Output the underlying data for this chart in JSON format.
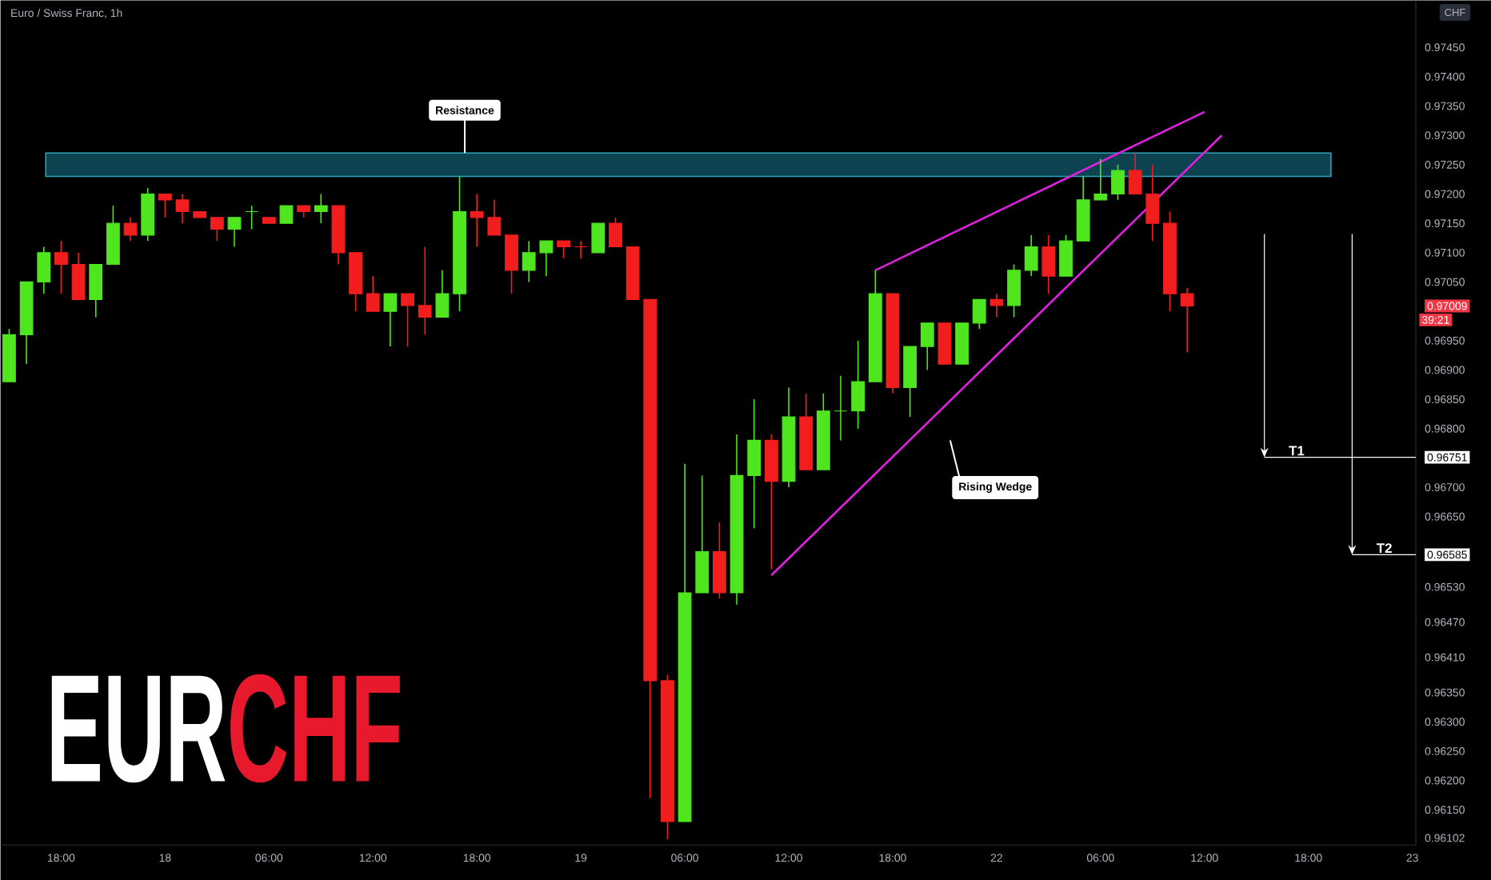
{
  "chart_data": {
    "type": "candlestick",
    "title": "Euro / Swiss Franc, 1h",
    "ylabel": "CHF",
    "categories": [
      null,
      null,
      null,
      "18:00",
      null,
      null,
      null,
      null,
      null,
      "18",
      null,
      null,
      null,
      null,
      null,
      "06:00",
      null,
      null,
      null,
      null,
      null,
      "12:00",
      null,
      null,
      null,
      null,
      null,
      "18:00",
      null,
      null,
      null,
      null,
      null,
      "19",
      null,
      null,
      null,
      null,
      null,
      "06:00",
      null,
      null,
      null,
      null,
      null,
      "12:00",
      null,
      null,
      null,
      null,
      null,
      "18:00",
      null,
      null,
      null,
      null,
      null,
      "22",
      null,
      null,
      null,
      null,
      null,
      "06:00",
      null,
      null,
      null,
      null,
      null,
      "12:00",
      null,
      null,
      null,
      null,
      null,
      "18:00",
      null,
      null,
      null,
      null,
      null,
      "23"
    ],
    "ohlc": [
      [
        0.9688,
        0.9697,
        0.9688,
        0.9696
      ],
      [
        0.9696,
        0.9705,
        0.9691,
        0.9705
      ],
      [
        0.9705,
        0.9711,
        0.9703,
        0.971
      ],
      [
        0.971,
        0.9712,
        0.9703,
        0.9708
      ],
      [
        0.9708,
        0.971,
        0.9702,
        0.9702
      ],
      [
        0.9702,
        0.9708,
        0.9699,
        0.9708
      ],
      [
        0.9708,
        0.9718,
        0.9708,
        0.9715
      ],
      [
        0.9715,
        0.9716,
        0.9712,
        0.9713
      ],
      [
        0.9713,
        0.9721,
        0.9712,
        0.972
      ],
      [
        0.972,
        0.972,
        0.9716,
        0.9719
      ],
      [
        0.9719,
        0.972,
        0.9715,
        0.9717
      ],
      [
        0.9717,
        0.9717,
        0.9716,
        0.9716
      ],
      [
        0.9716,
        0.9716,
        0.9712,
        0.9714
      ],
      [
        0.9714,
        0.9716,
        0.9711,
        0.9716
      ],
      [
        0.9717,
        0.9718,
        0.9714,
        0.9717
      ],
      [
        0.9716,
        0.9716,
        0.9715,
        0.9715
      ],
      [
        0.9715,
        0.9718,
        0.9715,
        0.9718
      ],
      [
        0.9718,
        0.9718,
        0.9716,
        0.9717
      ],
      [
        0.9717,
        0.972,
        0.9715,
        0.9718
      ],
      [
        0.9718,
        0.9718,
        0.9708,
        0.971
      ],
      [
        0.971,
        0.971,
        0.97,
        0.9703
      ],
      [
        0.9703,
        0.9706,
        0.97,
        0.97
      ],
      [
        0.97,
        0.9703,
        0.9694,
        0.9703
      ],
      [
        0.9703,
        0.9703,
        0.9694,
        0.9701
      ],
      [
        0.9701,
        0.9711,
        0.9696,
        0.9699
      ],
      [
        0.9699,
        0.9707,
        0.9699,
        0.9703
      ],
      [
        0.9703,
        0.9723,
        0.97,
        0.9717
      ],
      [
        0.9717,
        0.972,
        0.9711,
        0.9716
      ],
      [
        0.9716,
        0.9719,
        0.9713,
        0.9713
      ],
      [
        0.9713,
        0.9713,
        0.9703,
        0.9707
      ],
      [
        0.9707,
        0.9712,
        0.9705,
        0.971
      ],
      [
        0.971,
        0.9712,
        0.9706,
        0.9712
      ],
      [
        0.9712,
        0.9712,
        0.9709,
        0.9711
      ],
      [
        0.9711,
        0.9712,
        0.9709,
        0.9711
      ],
      [
        0.971,
        0.9715,
        0.971,
        0.9715
      ],
      [
        0.9715,
        0.9716,
        0.9711,
        0.9711
      ],
      [
        0.9711,
        0.9711,
        0.9702,
        0.9702
      ],
      [
        0.9702,
        0.9702,
        0.9617,
        0.9637
      ],
      [
        0.9637,
        0.9638,
        0.961,
        0.9613
      ],
      [
        0.9613,
        0.9674,
        0.9613,
        0.9652
      ],
      [
        0.9652,
        0.9672,
        0.9652,
        0.9659
      ],
      [
        0.9659,
        0.9664,
        0.9651,
        0.9652
      ],
      [
        0.9652,
        0.9679,
        0.965,
        0.9672
      ],
      [
        0.9672,
        0.9685,
        0.9663,
        0.9678
      ],
      [
        0.9678,
        0.9679,
        0.9656,
        0.9671
      ],
      [
        0.9671,
        0.9687,
        0.967,
        0.9682
      ],
      [
        0.9682,
        0.9686,
        0.9673,
        0.9673
      ],
      [
        0.9673,
        0.9686,
        0.9673,
        0.9683
      ],
      [
        0.9683,
        0.9689,
        0.9678,
        0.9683
      ],
      [
        0.9683,
        0.9695,
        0.968,
        0.9688
      ],
      [
        0.9688,
        0.9707,
        0.9688,
        0.9703
      ],
      [
        0.9703,
        0.9703,
        0.9686,
        0.9687
      ],
      [
        0.9687,
        0.9694,
        0.9682,
        0.9694
      ],
      [
        0.9694,
        0.9698,
        0.969,
        0.9698
      ],
      [
        0.9698,
        0.9698,
        0.9691,
        0.9691
      ],
      [
        0.9691,
        0.9698,
        0.9691,
        0.9698
      ],
      [
        0.9698,
        0.9702,
        0.9697,
        0.9702
      ],
      [
        0.9702,
        0.9703,
        0.9699,
        0.9701
      ],
      [
        0.9701,
        0.9708,
        0.9699,
        0.9707
      ],
      [
        0.9707,
        0.9713,
        0.9706,
        0.9711
      ],
      [
        0.9711,
        0.9713,
        0.9703,
        0.9706
      ],
      [
        0.9706,
        0.9713,
        0.9706,
        0.9712
      ],
      [
        0.9712,
        0.9723,
        0.9712,
        0.9719
      ],
      [
        0.9719,
        0.9726,
        0.9719,
        0.972
      ],
      [
        0.972,
        0.9725,
        0.9719,
        0.9724
      ],
      [
        0.9724,
        0.9727,
        0.972,
        0.972
      ],
      [
        0.972,
        0.9725,
        0.9712,
        0.9715
      ],
      [
        0.9715,
        0.9717,
        0.97,
        0.9703
      ],
      [
        0.9703,
        0.9704,
        0.9693,
        0.97009
      ],
      null,
      null,
      null,
      null,
      null,
      null,
      null,
      null,
      null,
      null,
      null,
      null,
      null
    ],
    "colors": [
      "#4fe61f",
      "#4fe61f",
      "#4fe61f",
      "#f21e1e",
      "#f21e1e",
      "#4fe61f",
      "#4fe61f",
      "#f21e1e",
      "#4fe61f",
      "#f21e1e",
      "#f21e1e",
      "#f21e1e",
      "#f21e1e",
      "#4fe61f",
      "#4fe61f",
      "#f21e1e",
      "#4fe61f",
      "#f21e1e",
      "#4fe61f",
      "#f21e1e",
      "#f21e1e",
      "#f21e1e",
      "#4fe61f",
      "#f21e1e",
      "#f21e1e",
      "#4fe61f",
      "#4fe61f",
      "#f21e1e",
      "#f21e1e",
      "#f21e1e",
      "#4fe61f",
      "#4fe61f",
      "#f21e1e",
      "#f21e1e",
      "#4fe61f",
      "#f21e1e",
      "#f21e1e",
      "#f21e1e",
      "#f21e1e",
      "#4fe61f",
      "#4fe61f",
      "#f21e1e",
      "#4fe61f",
      "#4fe61f",
      "#f21e1e",
      "#4fe61f",
      "#f21e1e",
      "#4fe61f",
      "#4fe61f",
      "#4fe61f",
      "#4fe61f",
      "#f21e1e",
      "#4fe61f",
      "#4fe61f",
      "#f21e1e",
      "#4fe61f",
      "#4fe61f",
      "#f21e1e",
      "#4fe61f",
      "#4fe61f",
      "#f21e1e",
      "#4fe61f",
      "#4fe61f",
      "#4fe61f",
      "#4fe61f",
      "#f21e1e",
      "#f21e1e",
      "#f21e1e",
      "#f21e1e",
      null,
      null,
      null,
      null,
      null,
      null,
      null,
      null,
      null,
      null,
      null,
      null,
      null
    ],
    "series": [
      {
        "type": "line",
        "color": "#e020e0",
        "line_style": "solid",
        "marker": "none",
        "values": [
          null,
          null,
          null,
          null,
          null,
          null,
          null,
          null,
          null,
          null,
          null,
          null,
          null,
          null,
          null,
          null,
          null,
          null,
          null,
          null,
          null,
          null,
          null,
          null,
          null,
          null,
          null,
          null,
          null,
          null,
          null,
          null,
          null,
          null,
          null,
          null,
          null,
          null,
          null,
          null,
          null,
          null,
          null,
          null,
          null,
          null,
          null,
          null,
          null,
          null,
          0.9707,
          null,
          null,
          null,
          null,
          null,
          null,
          null,
          null,
          null,
          null,
          null,
          null,
          null,
          null,
          null,
          null,
          null,
          null,
          0.9734,
          null,
          null,
          null,
          null,
          null,
          null,
          null,
          null,
          null,
          null,
          null,
          null
        ]
      },
      {
        "type": "line",
        "color": "#e020e0",
        "line_style": "solid",
        "marker": "none",
        "values": [
          null,
          null,
          null,
          null,
          null,
          null,
          null,
          null,
          null,
          null,
          null,
          null,
          null,
          null,
          null,
          null,
          null,
          null,
          null,
          null,
          null,
          null,
          null,
          null,
          null,
          null,
          null,
          null,
          null,
          null,
          null,
          null,
          null,
          null,
          null,
          null,
          null,
          null,
          null,
          null,
          null,
          null,
          null,
          null,
          0.9655,
          null,
          null,
          null,
          null,
          null,
          null,
          null,
          null,
          null,
          null,
          null,
          null,
          null,
          null,
          null,
          null,
          null,
          null,
          null,
          null,
          null,
          null,
          null,
          null,
          null,
          0.973,
          null,
          null,
          null,
          null,
          null,
          null,
          null,
          null,
          null,
          null,
          null
        ]
      }
    ],
    "ylim": [
      0.9609,
      0.9753
    ],
    "yticks": [
      {
        "value": 0.9745,
        "label": "0.97450"
      },
      {
        "value": 0.974,
        "label": "0.97400"
      },
      {
        "value": 0.9735,
        "label": "0.97350"
      },
      {
        "value": 0.973,
        "label": "0.97300"
      },
      {
        "value": 0.9725,
        "label": "0.97250"
      },
      {
        "value": 0.972,
        "label": "0.97200"
      },
      {
        "value": 0.9715,
        "label": "0.97150"
      },
      {
        "value": 0.971,
        "label": "0.97100"
      },
      {
        "value": 0.9705,
        "label": "0.97050"
      },
      {
        "value": 0.97009,
        "label": "0.97009"
      },
      {
        "value": 0.9695,
        "label": "0.96950"
      },
      {
        "value": 0.969,
        "label": "0.96900"
      },
      {
        "value": 0.9685,
        "label": "0.96850"
      },
      {
        "value": 0.968,
        "label": "0.96800"
      },
      {
        "value": 0.96751,
        "label": "0.96751"
      },
      {
        "value": 0.967,
        "label": "0.96700"
      },
      {
        "value": 0.9665,
        "label": "0.96650"
      },
      {
        "value": 0.96585,
        "label": "0.96585"
      },
      {
        "value": 0.9653,
        "label": "0.96530"
      },
      {
        "value": 0.9647,
        "label": "0.96470"
      },
      {
        "value": 0.9641,
        "label": "0.96410"
      },
      {
        "value": 0.9635,
        "label": "0.96350"
      },
      {
        "value": 0.963,
        "label": "0.96300"
      },
      {
        "value": 0.9625,
        "label": "0.96250"
      },
      {
        "value": 0.962,
        "label": "0.96200"
      },
      {
        "value": 0.9615,
        "label": "0.96150"
      },
      {
        "value": 0.96102,
        "label": "0.96102"
      }
    ],
    "bands": [
      {
        "axis": "y",
        "from": 0.9723,
        "to": 0.9727,
        "color": "#0d4350"
      }
    ],
    "ref_lines": [
      {
        "axis": "y",
        "value": 0.96751,
        "label": "T1",
        "color": "#ffffff"
      },
      {
        "axis": "y",
        "value": 0.96585,
        "label": "T2",
        "color": "#ffffff"
      }
    ],
    "annotations": [
      {
        "text": "Resistance",
        "y": 0.9727
      },
      "EUR",
      "CHF",
      "39:21",
      "Rising Wedge"
    ]
  }
}
